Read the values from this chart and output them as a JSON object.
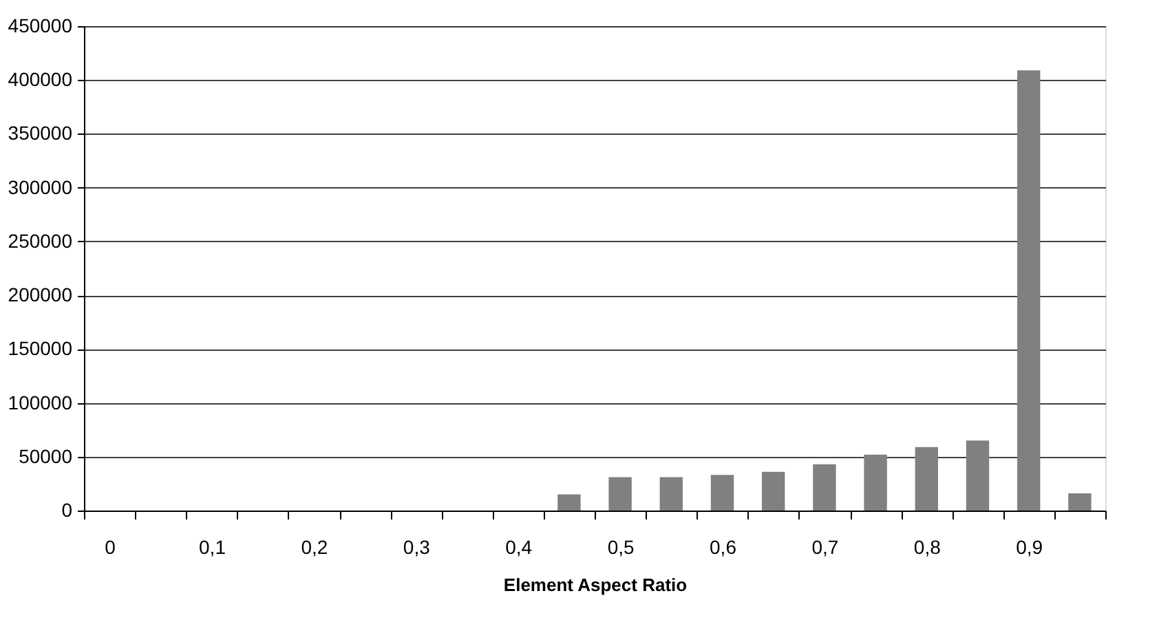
{
  "chart_data": {
    "type": "bar",
    "xlabel": "Element Aspect Ratio",
    "categories": [
      "0",
      null,
      "0,1",
      null,
      "0,2",
      null,
      "0,3",
      null,
      "0,4",
      null,
      "0,5",
      null,
      "0,6",
      null,
      "0,7",
      null,
      "0,8",
      null,
      "0,9",
      null
    ],
    "values": [
      null,
      null,
      null,
      null,
      null,
      null,
      null,
      null,
      null,
      15000,
      31000,
      31000,
      33000,
      36000,
      43000,
      52000,
      59000,
      65000,
      409000,
      16000
    ],
    "color": "#808080",
    "ylim": [
      0,
      450000
    ],
    "yticks": [
      0,
      50000,
      100000,
      150000,
      200000,
      250000,
      300000,
      350000,
      400000,
      450000
    ],
    "grid": "y"
  }
}
